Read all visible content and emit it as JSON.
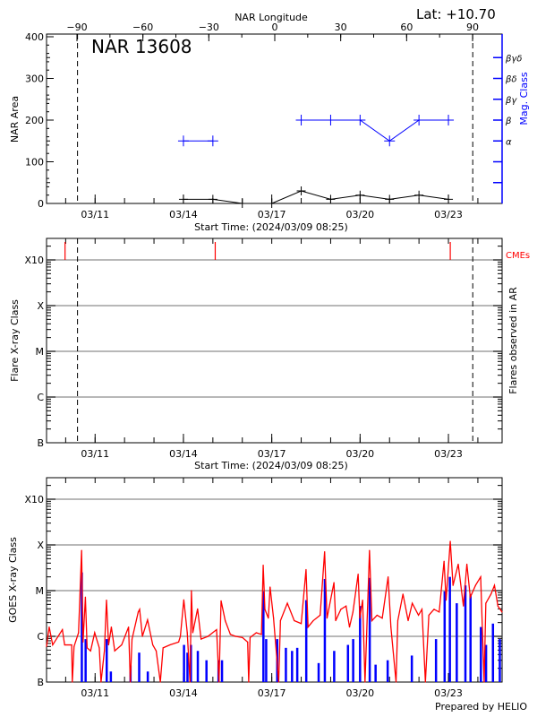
{
  "header": {
    "region_title": "NAR 13608",
    "latitude": "Lat: +10.70",
    "footer": "Prepared by HELIO"
  },
  "colors": {
    "area": "#000000",
    "mag_class": "#0000ff",
    "goes_long": "#ff0000",
    "goes_short": "#0000ff",
    "cme": "#ff0000",
    "grid": "#a0a0a0"
  },
  "chart_data": [
    {
      "type": "line",
      "title": "NAR 13608",
      "xlabel": "Start Time: (2024/03/09 08:25)",
      "ylabel": "NAR Area",
      "y2label": "Mag. Class",
      "top_axis_label": "NAR Longitude",
      "xlim": [
        "2024-03-09 08:25",
        "2024-03-24 19:45"
      ],
      "ylim": [
        0,
        400
      ],
      "yticks": [
        "0",
        "100",
        "200",
        "300",
        "400"
      ],
      "xtick_labels": [
        "03/11",
        "03/14",
        "03/17",
        "03/20",
        "03/23"
      ],
      "longitude_ticks": [
        "-90",
        "-60",
        "-30",
        "0",
        "30",
        "60",
        "90"
      ],
      "mag_class_ticks": [
        "α",
        "β",
        "βγ",
        "βδ",
        "βγδ"
      ],
      "limb_lines": [
        "2024-03-10 09:40",
        "2024-03-23 19:50"
      ],
      "series": [
        {
          "kind": "area",
          "x": [
            "2024-03-14 00:00",
            "2024-03-15 00:00",
            "2024-03-16 00:00",
            "2024-03-17 00:00",
            "2024-03-18 00:00",
            "2024-03-19 00:00",
            "2024-03-20 00:00",
            "2024-03-21 00:00",
            "2024-03-22 00:00",
            "2024-03-23 00:00"
          ],
          "values": [
            10,
            10,
            0,
            0,
            30,
            10,
            20,
            10,
            20,
            10
          ]
        },
        {
          "kind": "mag_class",
          "segments": [
            {
              "x": [
                "2024-03-14 00:00",
                "2024-03-15 00:00"
              ],
              "values": [
                "α",
                "α"
              ]
            },
            {
              "x": [
                "2024-03-18 00:00",
                "2024-03-19 00:00",
                "2024-03-20 00:00",
                "2024-03-21 00:00",
                "2024-03-22 00:00",
                "2024-03-23 00:00"
              ],
              "values": [
                "β",
                "β",
                "β",
                "α",
                "β",
                "β"
              ]
            }
          ]
        }
      ]
    },
    {
      "type": "scatter",
      "xlabel": "Start Time: (2024/03/09 08:25)",
      "ylabel": "Flare X-ray Class",
      "y2label": "Flares observed in AR",
      "ylim": [
        1e-07,
        0.003
      ],
      "yscale": "log",
      "yticks": [
        "B",
        "C",
        "M",
        "X",
        "X10"
      ],
      "xtick_labels": [
        "03/11",
        "03/14",
        "03/17",
        "03/20",
        "03/23"
      ],
      "cme_label": "CMEs",
      "cmes": [
        "2024-03-09 23:30",
        "2024-03-15 01:55",
        "2024-03-23 01:30"
      ],
      "flares": [],
      "limb_lines": [
        "2024-03-10 09:40",
        "2024-03-23 19:50"
      ]
    },
    {
      "type": "line",
      "ylabel": "GOES X-ray Class",
      "ylim": [
        1e-07,
        0.003
      ],
      "yscale": "log",
      "yticks": [
        "B",
        "C",
        "M",
        "X",
        "X10"
      ],
      "xtick_labels": [
        "03/11",
        "03/14",
        "03/17",
        "03/20",
        "03/23"
      ],
      "series": [
        {
          "kind": "long",
          "points": [
            [
              "2024-03-09 08:25",
              6e-07
            ],
            [
              "2024-03-09 10:35",
              1.6e-06
            ],
            [
              "2024-03-09 13:25",
              6.5e-07
            ],
            [
              "2024-03-09 21:20",
              1.4e-06
            ],
            [
              "2024-03-09 23:10",
              6.5e-07
            ],
            [
              "2024-03-10 04:55",
              6.5e-07
            ],
            [
              "2024-03-10 05:25",
              1e-07
            ],
            [
              "2024-03-10 06:50",
              6e-07
            ],
            [
              "2024-03-10 10:30",
              1.2e-06
            ],
            [
              "2024-03-10 13:00",
              7.6e-05
            ],
            [
              "2024-03-10 14:10",
              7.5e-07
            ],
            [
              "2024-03-10 16:05",
              7.2e-06
            ],
            [
              "2024-03-10 17:30",
              5.6e-07
            ],
            [
              "2024-03-10 20:20",
              4.8e-07
            ],
            [
              "2024-03-10 23:40",
              1.2e-06
            ],
            [
              "2024-03-11 03:25",
              5.6e-07
            ],
            [
              "2024-03-11 04:50",
              1e-07
            ],
            [
              "2024-03-11 07:35",
              4.8e-07
            ],
            [
              "2024-03-11 09:17",
              6.2e-06
            ],
            [
              "2024-03-11 11:00",
              6.5e-07
            ],
            [
              "2024-03-11 13:15",
              1.6e-06
            ],
            [
              "2024-03-11 16:00",
              4.8e-07
            ],
            [
              "2024-03-11 21:40",
              6.5e-07
            ],
            [
              "2024-03-12 03:17",
              1.6e-06
            ],
            [
              "2024-03-12 04:42",
              1e-07
            ],
            [
              "2024-03-12 06:06",
              8.7e-07
            ],
            [
              "2024-03-12 11:10",
              3.4e-06
            ],
            [
              "2024-03-12 12:18",
              3.9e-06
            ],
            [
              "2024-03-12 14:33",
              1e-06
            ],
            [
              "2024-03-12 18:46",
              2.3e-06
            ],
            [
              "2024-03-12 23:00",
              6.5e-07
            ],
            [
              "2024-03-13 01:48",
              4.8e-07
            ],
            [
              "2024-03-13 05:10",
              1e-07
            ],
            [
              "2024-03-13 07:25",
              5.6e-07
            ],
            [
              "2024-03-13 13:03",
              6.5e-07
            ],
            [
              "2024-03-13 20:05",
              7.5e-07
            ],
            [
              "2024-03-13 21:30",
              1e-06
            ],
            [
              "2024-03-14 00:18",
              6.3e-06
            ],
            [
              "2024-03-14 03:07",
              1.2e-06
            ],
            [
              "2024-03-14 05:22",
              1e-07
            ],
            [
              "2024-03-14 06:30",
              1e-05
            ],
            [
              "2024-03-14 07:37",
              1.2e-06
            ],
            [
              "2024-03-14 11:33",
              4e-06
            ],
            [
              "2024-03-14 14:22",
              8.7e-07
            ],
            [
              "2024-03-14 20:00",
              1e-06
            ],
            [
              "2024-03-15 03:02",
              1.4e-06
            ],
            [
              "2024-03-15 05:00",
              1e-07
            ],
            [
              "2024-03-15 06:41",
              6e-06
            ],
            [
              "2024-03-15 10:04",
              2.2e-06
            ],
            [
              "2024-03-15 14:17",
              1.1e-06
            ],
            [
              "2024-03-15 18:30",
              1e-06
            ],
            [
              "2024-03-16 00:08",
              9.4e-07
            ],
            [
              "2024-03-16 04:21",
              7.5e-07
            ],
            [
              "2024-03-16 05:12",
              1e-07
            ],
            [
              "2024-03-16 06:20",
              9.4e-07
            ],
            [
              "2024-03-16 11:23",
              1.2e-06
            ],
            [
              "2024-03-16 15:36",
              1.1e-06
            ],
            [
              "2024-03-16 17:01",
              3.6e-05
            ],
            [
              "2024-03-16 18:25",
              3.9e-06
            ],
            [
              "2024-03-16 21:14",
              2.5e-06
            ],
            [
              "2024-03-16 22:38",
              1.2e-05
            ],
            [
              "2024-03-17 01:27",
              2.5e-06
            ],
            [
              "2024-03-17 05:40",
              1e-07
            ],
            [
              "2024-03-17 07:05",
              2.2e-06
            ],
            [
              "2024-03-17 12:42",
              5.3e-06
            ],
            [
              "2024-03-17 18:20",
              2.2e-06
            ],
            [
              "2024-03-18 00:00",
              1.9e-06
            ],
            [
              "2024-03-18 03:56",
              2.9e-05
            ],
            [
              "2024-03-18 05:35",
              1.6e-06
            ],
            [
              "2024-03-18 09:48",
              2.2e-06
            ],
            [
              "2024-03-18 15:26",
              2.9e-06
            ],
            [
              "2024-03-18 19:05",
              7.1e-05
            ],
            [
              "2024-03-18 21:04",
              2.5e-06
            ],
            [
              "2024-03-19 02:42",
              1.5e-05
            ],
            [
              "2024-03-19 04:06",
              2.2e-06
            ],
            [
              "2024-03-19 08:20",
              3.9e-06
            ],
            [
              "2024-03-19 12:33",
              4.6e-06
            ],
            [
              "2024-03-19 15:22",
              1.6e-06
            ],
            [
              "2024-03-19 18:11",
              3.4e-06
            ],
            [
              "2024-03-19 22:24",
              2.3e-05
            ],
            [
              "2024-03-19 23:48",
              2.5e-06
            ],
            [
              "2024-03-20 02:03",
              6.2e-06
            ],
            [
              "2024-03-20 04:01",
              1e-07
            ],
            [
              "2024-03-20 07:40",
              7.6e-05
            ],
            [
              "2024-03-20 09:38",
              2.2e-06
            ],
            [
              "2024-03-20 13:51",
              2.9e-06
            ],
            [
              "2024-03-20 18:04",
              2.5e-06
            ],
            [
              "2024-03-20 22:51",
              2e-05
            ],
            [
              "2024-03-21 01:06",
              1.6e-06
            ],
            [
              "2024-03-21 05:19",
              1e-07
            ],
            [
              "2024-03-21 06:44",
              2.2e-06
            ],
            [
              "2024-03-21 10:57",
              8.4e-06
            ],
            [
              "2024-03-21 15:10",
              2.2e-06
            ],
            [
              "2024-03-21 18:32",
              5.3e-06
            ],
            [
              "2024-03-21 23:36",
              2.9e-06
            ],
            [
              "2024-03-22 02:25",
              3.9e-06
            ],
            [
              "2024-03-22 05:14",
              1e-07
            ],
            [
              "2024-03-22 08:03",
              2.9e-06
            ],
            [
              "2024-03-22 12:16",
              3.9e-06
            ],
            [
              "2024-03-22 16:29",
              3.4e-06
            ],
            [
              "2024-03-22 20:26",
              4.4e-05
            ],
            [
              "2024-03-22 22:07",
              6.2e-06
            ],
            [
              "2024-03-23 01:30",
              0.00012
            ],
            [
              "2024-03-23 03:45",
              1.3e-05
            ],
            [
              "2024-03-23 08:00",
              3.8e-05
            ],
            [
              "2024-03-23 12:13",
              4.6e-06
            ],
            [
              "2024-03-23 15:02",
              3.8e-05
            ],
            [
              "2024-03-23 17:50",
              7.2e-06
            ],
            [
              "2024-03-23 22:04",
              1.3e-05
            ],
            [
              "2024-03-24 02:17",
              2e-05
            ],
            [
              "2024-03-24 05:06",
              1e-07
            ],
            [
              "2024-03-24 06:30",
              5.3e-06
            ],
            [
              "2024-03-24 10:43",
              8.4e-06
            ],
            [
              "2024-03-24 13:32",
              1.3e-05
            ],
            [
              "2024-03-24 16:21",
              4.6e-06
            ],
            [
              "2024-03-24 19:43",
              3.4e-06
            ]
          ]
        },
        {
          "kind": "short",
          "points": [
            [
              "2024-03-10 13:00",
              2.5e-05
            ],
            [
              "2024-03-10 16:05",
              8.7e-07
            ],
            [
              "2024-03-11 09:17",
              8.7e-07
            ],
            [
              "2024-03-11 12:40",
              1.7e-07
            ],
            [
              "2024-03-12 04:42",
              2.3e-07
            ],
            [
              "2024-03-12 11:45",
              4.4e-07
            ],
            [
              "2024-03-12 18:46",
              1.7e-07
            ],
            [
              "2024-03-14 00:18",
              6.5e-07
            ],
            [
              "2024-03-14 03:07",
              4.4e-07
            ],
            [
              "2024-03-14 05:56",
              6.5e-07
            ],
            [
              "2024-03-14 11:33",
              4.8e-07
            ],
            [
              "2024-03-14 18:36",
              3e-07
            ],
            [
              "2024-03-15 04:26",
              3e-07
            ],
            [
              "2024-03-15 07:16",
              3e-07
            ],
            [
              "2024-03-16 17:01",
              9.7e-06
            ],
            [
              "2024-03-16 19:16",
              8.7e-07
            ],
            [
              "2024-03-17 04:16",
              8.7e-07
            ],
            [
              "2024-03-17 11:20",
              5.6e-07
            ],
            [
              "2024-03-17 16:22",
              4.8e-07
            ],
            [
              "2024-03-17 20:36",
              5.6e-07
            ],
            [
              "2024-03-18 03:56",
              6.2e-06
            ],
            [
              "2024-03-18 14:02",
              2.6e-07
            ],
            [
              "2024-03-18 19:05",
              1.8e-05
            ],
            [
              "2024-03-19 02:42",
              4.8e-07
            ],
            [
              "2024-03-19 13:57",
              6.5e-07
            ],
            [
              "2024-03-19 18:11",
              8.7e-07
            ],
            [
              "2024-03-19 23:48",
              4.6e-06
            ],
            [
              "2024-03-20 07:40",
              1.9e-05
            ],
            [
              "2024-03-20 12:27",
              2.4e-07
            ],
            [
              "2024-03-20 22:18",
              3e-07
            ],
            [
              "2024-03-21 18:00",
              3.8e-07
            ],
            [
              "2024-03-22 13:42",
              8.7e-07
            ],
            [
              "2024-03-22 20:44",
              9.7e-06
            ],
            [
              "2024-03-23 01:00",
              2e-05
            ],
            [
              "2024-03-23 06:37",
              5.3e-06
            ],
            [
              "2024-03-23 13:40",
              1.3e-05
            ],
            [
              "2024-03-23 17:50",
              8.4e-06
            ],
            [
              "2024-03-24 02:17",
              1.6e-06
            ],
            [
              "2024-03-24 06:30",
              6.5e-07
            ],
            [
              "2024-03-24 12:07",
              1.9e-06
            ],
            [
              "2024-03-24 17:42",
              8.7e-07
            ]
          ]
        }
      ]
    }
  ]
}
